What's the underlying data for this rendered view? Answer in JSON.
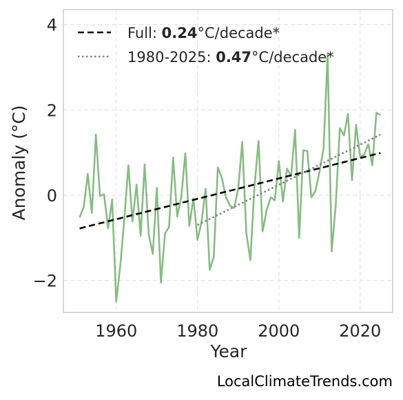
{
  "chart_data": {
    "type": "line",
    "xlabel": "Year",
    "ylabel": "Anomaly (°C)",
    "xlim": [
      1947,
      2028
    ],
    "ylim": [
      -2.75,
      4.35
    ],
    "xticks": [
      1960,
      1980,
      2000,
      2020
    ],
    "yticks": [
      -2,
      0,
      2,
      4
    ],
    "ytick_labels": [
      "−2",
      "0",
      "2",
      "4"
    ],
    "grid": true,
    "legend_position": "top-left",
    "series": [
      {
        "type": "line",
        "color": "#88bb84",
        "x": [
          1951,
          1952,
          1953,
          1954,
          1955,
          1956,
          1957,
          1958,
          1959,
          1960,
          1961,
          1962,
          1963,
          1964,
          1965,
          1966,
          1967,
          1968,
          1969,
          1970,
          1971,
          1972,
          1973,
          1974,
          1975,
          1976,
          1977,
          1978,
          1979,
          1980,
          1981,
          1982,
          1983,
          1984,
          1985,
          1986,
          1987,
          1988,
          1989,
          1990,
          1991,
          1992,
          1993,
          1994,
          1995,
          1996,
          1997,
          1998,
          1999,
          2000,
          2001,
          2002,
          2003,
          2004,
          2005,
          2006,
          2007,
          2008,
          2009,
          2010,
          2011,
          2012,
          2013,
          2014,
          2015,
          2016,
          2017,
          2018,
          2019,
          2020,
          2021,
          2022,
          2023,
          2024,
          2025
        ],
        "y": [
          -0.52,
          -0.28,
          0.5,
          -0.42,
          1.42,
          -0.02,
          0.02,
          -0.78,
          -0.1,
          -2.5,
          -1.65,
          -0.55,
          0.7,
          -0.62,
          0.25,
          -0.95,
          0.72,
          -0.92,
          -1.38,
          0.17,
          -2.05,
          -0.9,
          -0.75,
          0.88,
          -0.5,
          -0.05,
          0.98,
          -0.72,
          -0.08,
          -1.05,
          -0.62,
          0.15,
          -1.75,
          -1.45,
          0.65,
          0.4,
          -0.05,
          -0.25,
          -0.3,
          0.15,
          1.25,
          -0.9,
          -1.52,
          0.2,
          1.27,
          -0.85,
          -0.35,
          -0.05,
          -0.12,
          0.8,
          -0.15,
          0.62,
          0.45,
          1.53,
          -1.0,
          1.05,
          1.04,
          -0.05,
          0.1,
          0.55,
          1.1,
          3.3,
          -1.32,
          -0.22,
          1.57,
          1.4,
          1.9,
          0.35,
          1.65,
          0.9,
          0.95,
          1.2,
          0.7,
          1.93,
          1.88
        ]
      },
      {
        "type": "line",
        "name": "Full: 0.24°C/decade*",
        "style": "dashed",
        "color": "#000000",
        "x": [
          1951,
          2025
        ],
        "y": [
          -0.78,
          0.99
        ]
      },
      {
        "type": "line",
        "name": "1980-2025: 0.47°C/decade*",
        "style": "dotted",
        "color": "#808080",
        "x": [
          1980,
          2025
        ],
        "y": [
          -0.7,
          1.42
        ]
      }
    ],
    "legend": [
      {
        "prefix": "Full: ",
        "bold": "0.24",
        "suffix": "°C/decade*",
        "style": "dashed",
        "color": "#000000"
      },
      {
        "prefix": "1980-2025: ",
        "bold": "0.47",
        "suffix": "°C/decade*",
        "style": "dotted",
        "color": "#808080"
      }
    ]
  },
  "footer": {
    "source": "LocalClimateTrends.com"
  }
}
